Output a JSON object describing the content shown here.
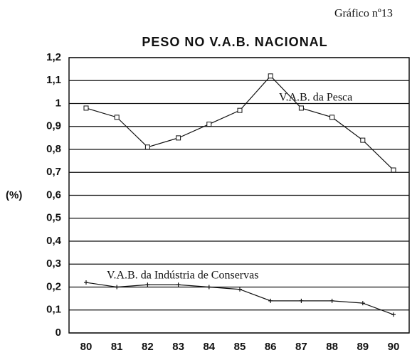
{
  "chart_data": {
    "type": "line",
    "caption": "Gráfico nº13",
    "title": "PESO NO V.A.B. NACIONAL",
    "y_label": "(%)",
    "categories": [
      "80",
      "81",
      "82",
      "83",
      "84",
      "85",
      "86",
      "87",
      "88",
      "89",
      "90"
    ],
    "series": [
      {
        "name": "V.A.B. da Pesca",
        "color": "#111111",
        "marker": "square",
        "values": [
          0.98,
          0.94,
          0.81,
          0.85,
          0.91,
          0.97,
          1.12,
          0.98,
          0.94,
          0.84,
          0.71
        ]
      },
      {
        "name": "V.A.B. da Indústria de Conservas",
        "color": "#111111",
        "marker": "plus",
        "values": [
          0.22,
          0.2,
          0.21,
          0.21,
          0.2,
          0.19,
          0.14,
          0.14,
          0.14,
          0.13,
          0.08
        ]
      }
    ],
    "ylim": [
      0,
      1.2
    ],
    "yticks": [
      0,
      {
        "value": 0.1,
        "label": "0,1"
      },
      {
        "value": 0.2,
        "label": "0,2"
      },
      {
        "value": 0.3,
        "label": "0,3"
      },
      {
        "value": 0.4,
        "label": "0,4"
      },
      {
        "value": 0.5,
        "label": "0,5"
      },
      {
        "value": 0.6,
        "label": "0,6"
      },
      {
        "value": 0.7,
        "label": "0,7"
      },
      {
        "value": 0.8,
        "label": "0,8"
      },
      {
        "value": 0.9,
        "label": "0,9"
      },
      1,
      {
        "value": 1.1,
        "label": "1,1"
      },
      {
        "value": 1.2,
        "label": "1,2"
      }
    ],
    "grid": true
  }
}
